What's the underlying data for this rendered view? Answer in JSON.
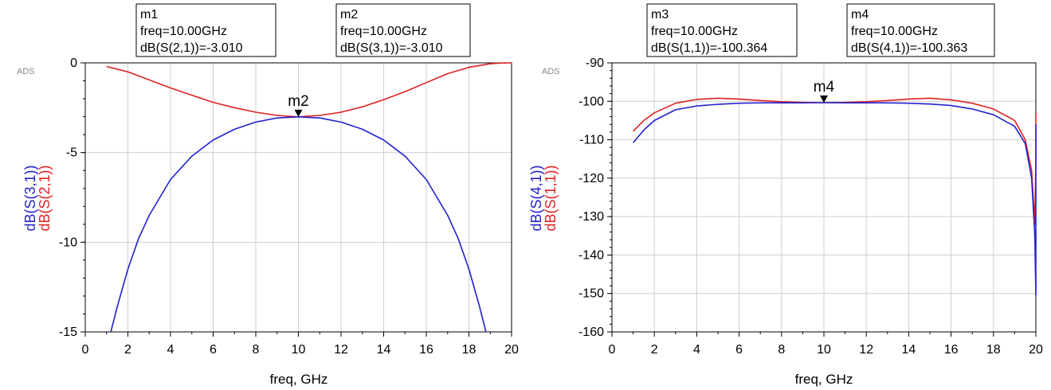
{
  "chart_data": [
    {
      "type": "line",
      "watermark": "ADS",
      "xlabel": "freq, GHz",
      "ylabels": [
        {
          "text": "dB(S(3,1))",
          "color": "#2222cc"
        },
        {
          "text": "dB(S(2,1))",
          "color": "#dd2222"
        }
      ],
      "xlim": [
        0,
        20
      ],
      "ylim": [
        -15,
        0
      ],
      "xticks": [
        0,
        2,
        4,
        6,
        8,
        10,
        12,
        14,
        16,
        18,
        20
      ],
      "yticks": [
        0,
        -5,
        -10,
        -15
      ],
      "grid": true,
      "series": [
        {
          "name": "dB(S(2,1))",
          "color": "#dd2222",
          "x": [
            1,
            2,
            3,
            4,
            5,
            6,
            7,
            8,
            9,
            10,
            11,
            12,
            13,
            14,
            15,
            16,
            17,
            18,
            19,
            19.5,
            20
          ],
          "y": [
            -0.2,
            -0.5,
            -0.95,
            -1.4,
            -1.8,
            -2.2,
            -2.5,
            -2.75,
            -2.93,
            -3.01,
            -2.93,
            -2.75,
            -2.45,
            -2.05,
            -1.6,
            -1.1,
            -0.6,
            -0.25,
            -0.05,
            -0.01,
            0
          ]
        },
        {
          "name": "dB(S(3,1))",
          "color": "#2222cc",
          "x": [
            1.2,
            1.5,
            2,
            2.5,
            3,
            4,
            5,
            6,
            7,
            8,
            9,
            10,
            11,
            12,
            13,
            14,
            15,
            16,
            17,
            17.5,
            18,
            18.5,
            18.8
          ],
          "y": [
            -15,
            -13.6,
            -11.5,
            -9.8,
            -8.5,
            -6.5,
            -5.2,
            -4.3,
            -3.7,
            -3.3,
            -3.07,
            -3.01,
            -3.07,
            -3.3,
            -3.7,
            -4.3,
            -5.2,
            -6.5,
            -8.5,
            -9.8,
            -11.5,
            -13.6,
            -15
          ]
        }
      ],
      "markers": [
        {
          "label": "m1",
          "freq": "freq=10.00GHz",
          "value": "dB(S(2,1))=-3.010"
        },
        {
          "label": "m2",
          "freq": "freq=10.00GHz",
          "value": "dB(S(3,1))=-3.010"
        }
      ],
      "marker_point": {
        "x": 10,
        "y": -3.01,
        "text": "m2"
      }
    },
    {
      "type": "line",
      "watermark": "ADS",
      "xlabel": "freq, GHz",
      "ylabels": [
        {
          "text": "dB(S(4,1))",
          "color": "#2222cc"
        },
        {
          "text": "dB(S(1,1))",
          "color": "#dd2222"
        }
      ],
      "xlim": [
        0,
        20
      ],
      "ylim": [
        -160,
        -90
      ],
      "xticks": [
        0,
        2,
        4,
        6,
        8,
        10,
        12,
        14,
        16,
        18,
        20
      ],
      "yticks": [
        -90,
        -100,
        -110,
        -120,
        -130,
        -140,
        -150,
        -160
      ],
      "grid": true,
      "series": [
        {
          "name": "dB(S(1,1))",
          "color": "#dd2222",
          "x": [
            1,
            1.5,
            2,
            3,
            4,
            5,
            6,
            7,
            8,
            9,
            10,
            11,
            12,
            13,
            14,
            15,
            16,
            17,
            18,
            19,
            19.5,
            19.8,
            19.95,
            20,
            20
          ],
          "y": [
            -107.8,
            -105,
            -103,
            -100.5,
            -99.5,
            -99.2,
            -99.4,
            -99.8,
            -100.1,
            -100.3,
            -100.36,
            -100.3,
            -100.1,
            -99.8,
            -99.4,
            -99.2,
            -99.6,
            -100.5,
            -102,
            -105,
            -110,
            -118,
            -132,
            -115,
            -103
          ]
        },
        {
          "name": "dB(S(4,1))",
          "color": "#2222cc",
          "x": [
            1,
            1.5,
            2,
            3,
            4,
            5,
            6,
            7,
            8,
            9,
            10,
            11,
            12,
            13,
            14,
            15,
            16,
            17,
            18,
            19,
            19.5,
            19.8,
            19.95,
            20,
            20
          ],
          "y": [
            -110.8,
            -107.5,
            -105,
            -102.2,
            -101.2,
            -100.8,
            -100.5,
            -100.4,
            -100.4,
            -100.4,
            -100.36,
            -100.4,
            -100.4,
            -100.4,
            -100.5,
            -100.7,
            -101.1,
            -102,
            -103.5,
            -106.5,
            -111,
            -120,
            -135,
            -150.5,
            -106
          ]
        }
      ],
      "markers": [
        {
          "label": "m3",
          "freq": "freq=10.00GHz",
          "value": "dB(S(1,1))=-100.364"
        },
        {
          "label": "m4",
          "freq": "freq=10.00GHz",
          "value": "dB(S(4,1))=-100.363"
        }
      ],
      "marker_point": {
        "x": 10,
        "y": -100.36,
        "text": "m4"
      }
    }
  ]
}
